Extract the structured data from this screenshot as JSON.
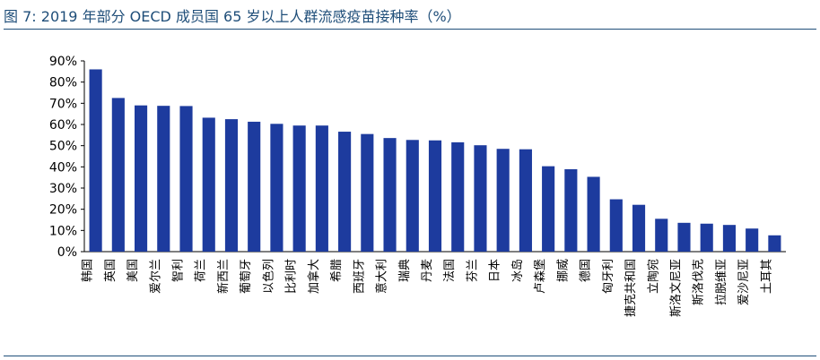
{
  "header": {
    "figure_label": "图 7:",
    "title": "2019 年部分 OECD 成员国 65 岁以上人群流感疫苗接种率（%）"
  },
  "colors": {
    "bar": "#1d3b9e",
    "title": "#1f4e79",
    "rule": "#1f4e79"
  },
  "chart_data": {
    "type": "bar",
    "title": "2019 年部分 OECD 成员国 65 岁以上人群流感疫苗接种率（%）",
    "xlabel": "",
    "ylabel": "",
    "ylim": [
      0,
      90
    ],
    "y_ticks": [
      "0%",
      "10%",
      "20%",
      "30%",
      "40%",
      "50%",
      "60%",
      "70%",
      "80%",
      "90%"
    ],
    "grid": false,
    "legend": "none",
    "categories": [
      "韩国",
      "英国",
      "美国",
      "爱尔兰",
      "智利",
      "荷兰",
      "新西兰",
      "葡萄牙",
      "以色列",
      "比利时",
      "加拿大",
      "希腊",
      "西班牙",
      "意大利",
      "瑞典",
      "丹麦",
      "法国",
      "芬兰",
      "日本",
      "冰岛",
      "卢森堡",
      "挪威",
      "德国",
      "匈牙利",
      "捷克共和国",
      "立陶宛",
      "斯洛文尼亚",
      "斯洛伐克",
      "拉脱维亚",
      "爱沙尼亚",
      "土耳其"
    ],
    "values": [
      86,
      72.5,
      69,
      68.8,
      68.7,
      63.2,
      62.5,
      61.3,
      60.3,
      59.5,
      59.5,
      56.6,
      55.5,
      53.6,
      52.7,
      52.5,
      51.6,
      50.2,
      48.5,
      48.3,
      40.3,
      38.9,
      35.3,
      24.7,
      22.1,
      15.5,
      13.6,
      13.2,
      12.6,
      10.9,
      7.7
    ]
  }
}
